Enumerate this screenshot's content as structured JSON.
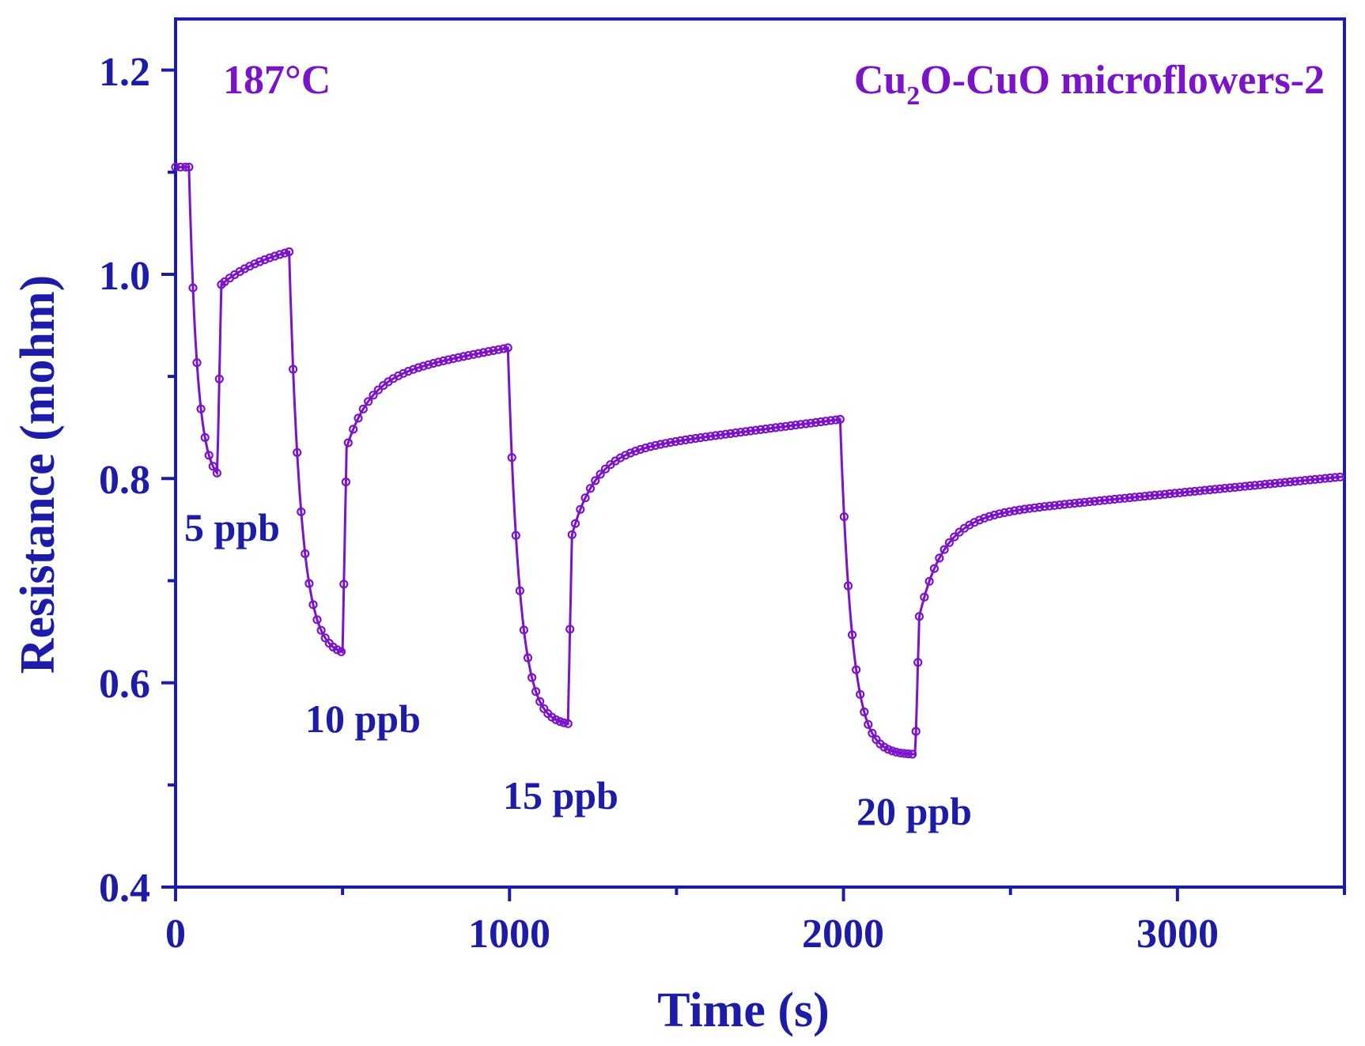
{
  "colors": {
    "axis": "#1c1ca8",
    "series": "#7b14c8"
  },
  "chart_data": {
    "type": "line",
    "title": "",
    "xlabel": "Time (s)",
    "ylabel": "Resistance (mohm)",
    "xlim": [
      0,
      3500
    ],
    "ylim": [
      0.4,
      1.25
    ],
    "xticks": [
      0,
      1000,
      2000,
      3000
    ],
    "xtick_labels": [
      "0",
      "1000",
      "2000",
      "3000"
    ],
    "yticks": [
      0.4,
      0.6,
      0.8,
      1.0,
      1.2
    ],
    "ytick_labels": [
      "0.4",
      "0.6",
      "0.8",
      "1.0",
      "1.2"
    ],
    "grid": false,
    "temperature_label": "187°C",
    "sample_label": {
      "main": "Cu",
      "sub": "2",
      "rest": "O-CuO microflowers-2"
    },
    "annotations": [
      {
        "text": "5 ppb",
        "x": 30,
        "y": 0.76
      },
      {
        "text": "10 ppb",
        "x": 375,
        "y": 0.565
      },
      {
        "text": "15 ppb",
        "x": 970,
        "y": 0.49
      },
      {
        "text": "20 ppb",
        "x": 1990,
        "y": 0.47
      }
    ],
    "series": [
      {
        "name": "Cu2O-CuO microflowers-2",
        "cycles": [
          {
            "gas": "5 ppb",
            "on": 40,
            "off": 125,
            "r_start": 1.105,
            "r_min": 0.805,
            "r_jump": 0.99,
            "tau_on": 25,
            "tau_off": 120
          },
          {
            "gas": "10 ppb",
            "on": 340,
            "off": 500,
            "r_start": 1.022,
            "r_min": 0.63,
            "r_jump": 0.83,
            "tau_on": 35,
            "tau_off": 70
          },
          {
            "gas": "15 ppb",
            "on": 995,
            "off": 1175,
            "r_start": 0.928,
            "r_min": 0.56,
            "r_jump": 0.745,
            "tau_on": 35,
            "tau_off": 70
          },
          {
            "gas": "20 ppb",
            "on": 1990,
            "off": 2215,
            "r_start": 0.858,
            "r_min": 0.53,
            "r_jump": 0.665,
            "tau_on": 35,
            "tau_off": 70
          }
        ],
        "recovery_end": [
          {
            "after": "5 ppb",
            "t": 340,
            "r": 1.022
          },
          {
            "after": "10 ppb",
            "t": 995,
            "r": 0.928
          },
          {
            "after": "15 ppb",
            "t": 1990,
            "r": 0.858
          },
          {
            "after": "20 ppb",
            "t": 3500,
            "r": 0.802
          }
        ]
      }
    ]
  }
}
